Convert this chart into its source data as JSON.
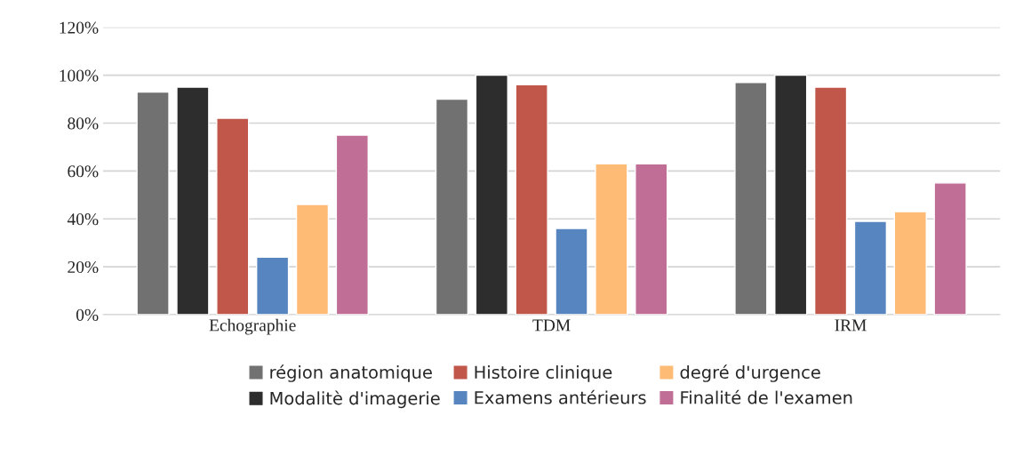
{
  "chart_data": {
    "type": "bar",
    "categories": [
      "Echographie",
      "TDM",
      "IRM"
    ],
    "series": [
      {
        "name": "région anatomique",
        "color": "#717171",
        "values": [
          93,
          90,
          97
        ]
      },
      {
        "name": "Modalitè d'imagerie",
        "color": "#2d2d2d",
        "values": [
          95,
          100,
          100
        ]
      },
      {
        "name": "Histoire clinique",
        "color": "#c0574a",
        "values": [
          82,
          96,
          95
        ]
      },
      {
        "name": "Examens antérieurs",
        "color": "#5785bf",
        "values": [
          24,
          36,
          39
        ]
      },
      {
        "name": "degré d'urgence",
        "color": "#fdbb75",
        "values": [
          46,
          63,
          43
        ]
      },
      {
        "name": "Finalité de l'examen",
        "color": "#c06e96",
        "values": [
          75,
          63,
          55
        ]
      }
    ],
    "ylim": [
      0,
      120
    ],
    "yticks": [
      {
        "value": 0,
        "label": "0%"
      },
      {
        "value": 20,
        "label": "20%"
      },
      {
        "value": 40,
        "label": "40%"
      },
      {
        "value": 60,
        "label": "60%"
      },
      {
        "value": 80,
        "label": "80%"
      },
      {
        "value": 100,
        "label": "100%"
      },
      {
        "value": 120,
        "label": "120%"
      }
    ],
    "grid": "y",
    "legend": "bottom"
  }
}
